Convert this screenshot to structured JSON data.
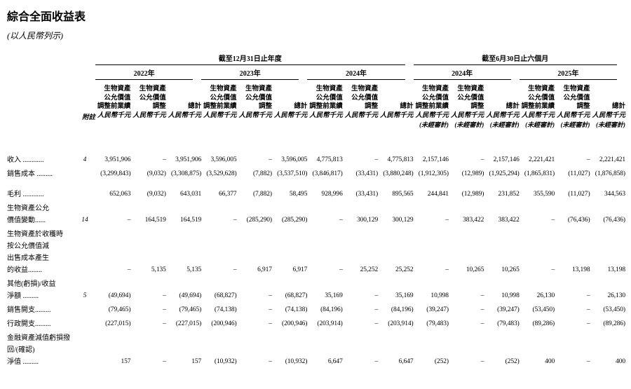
{
  "title": "綜合全面收益表",
  "subtitle": "(以人民幣列示)",
  "table": {
    "note_header": "附註",
    "currency": "人民幣千元",
    "unaudited": "(未經審計)",
    "col_headers": {
      "before": [
        "生物資產",
        "公允價值",
        "調整前業績"
      ],
      "adj": [
        "生物資產",
        "公允價值",
        "調整"
      ],
      "total": [
        "總計"
      ]
    },
    "groups": [
      {
        "label": "截至12月31日止年度",
        "years": [
          "2022年",
          "2023年",
          "2024年"
        ],
        "unaudited": false
      },
      {
        "label": "截至6月30日止六個月",
        "years": [
          "2024年",
          "2025年"
        ],
        "unaudited": true
      }
    ],
    "rows": [
      {
        "label_lines": [
          "收入 ............"
        ],
        "note": "4",
        "values": [
          "3,951,906",
          "–",
          "3,951,906",
          "3,596,005",
          "–",
          "3,596,005",
          "4,775,813",
          "–",
          "4,775,813",
          "2,157,146",
          "–",
          "2,157,146",
          "2,221,421",
          "–",
          "2,221,421"
        ]
      },
      {
        "label_lines": [
          "銷售成本 ........."
        ],
        "note": "",
        "values": [
          "(3,299,843)",
          "(9,032)",
          "(3,308,875)",
          "(3,529,628)",
          "(7,882)",
          "(3,537,510)",
          "(3,846,817)",
          "(33,431)",
          "(3,880,248)",
          "(1,912,305)",
          "(12,989)",
          "(1,925,294)",
          "(1,865,831)",
          "(11,027)",
          "(1,876,858)"
        ]
      },
      {
        "label_lines": [
          "毛利 ............"
        ],
        "note": "",
        "values": [
          "652,063",
          "(9,032)",
          "643,031",
          "66,377",
          "(7,882)",
          "58,495",
          "928,996",
          "(33,431)",
          "895,565",
          "244,841",
          "(12,989)",
          "231,852",
          "355,590",
          "(11,027)",
          "344,563"
        ]
      },
      {
        "label_lines": [
          "生物資產公允",
          "價值變動......"
        ],
        "note": "14",
        "values": [
          "–",
          "164,519",
          "164,519",
          "–",
          "(285,290)",
          "(285,290)",
          "–",
          "300,129",
          "300,129",
          "–",
          "383,422",
          "383,422",
          "–",
          "(76,436)",
          "(76,436)"
        ]
      },
      {
        "label_lines": [
          "生物資產於收穫時",
          "按公允價值減",
          "出售成本產生",
          "的收益........"
        ],
        "note": "",
        "values": [
          "–",
          "5,135",
          "5,135",
          "–",
          "6,917",
          "6,917",
          "–",
          "25,252",
          "25,252",
          "–",
          "10,265",
          "10,265",
          "–",
          "13,198",
          "13,198"
        ]
      },
      {
        "label_lines": [
          "其他(虧損)/收益",
          "淨額 ........."
        ],
        "note": "5",
        "values": [
          "(49,694)",
          "–",
          "(49,694)",
          "(68,827)",
          "–",
          "(68,827)",
          "35,169",
          "–",
          "35,169",
          "10,998",
          "–",
          "10,998",
          "26,130",
          "–",
          "26,130"
        ]
      },
      {
        "label_lines": [
          "銷售開支........."
        ],
        "note": "",
        "values": [
          "(79,465)",
          "–",
          "(79,465)",
          "(74,138)",
          "–",
          "(74,138)",
          "(84,196)",
          "–",
          "(84,196)",
          "(39,247)",
          "–",
          "(39,247)",
          "(53,450)",
          "–",
          "(53,450)"
        ]
      },
      {
        "label_lines": [
          "行政開支........."
        ],
        "note": "",
        "values": [
          "(227,015)",
          "–",
          "(227,015)",
          "(200,946)",
          "–",
          "(200,946)",
          "(203,914)",
          "–",
          "(203,914)",
          "(79,483)",
          "–",
          "(79,483)",
          "(89,286)",
          "–",
          "(89,286)"
        ]
      },
      {
        "label_lines": [
          "金融資產減值虧損撥",
          "回/(確認)",
          "淨值 ........."
        ],
        "note": "",
        "values": [
          "157",
          "–",
          "157",
          "(10,932)",
          "–",
          "(10,932)",
          "6,647",
          "–",
          "6,647",
          "(252)",
          "–",
          "(252)",
          "400",
          "–",
          "400"
        ]
      }
    ]
  }
}
